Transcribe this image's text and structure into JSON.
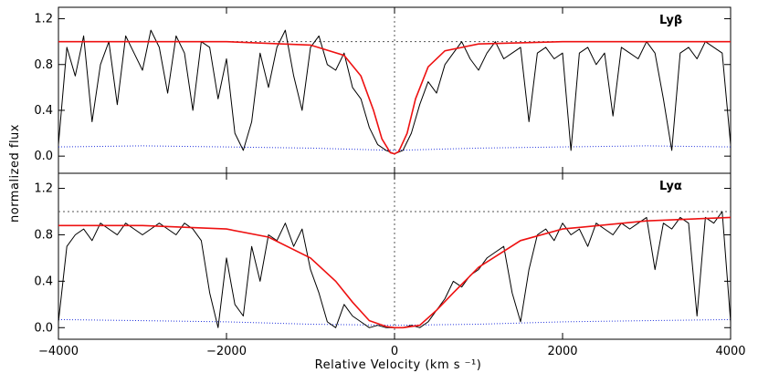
{
  "chart_data": {
    "type": "line",
    "xlabel": "Relative Velocity (km s ⁻¹)",
    "ylabel": "normalized flux",
    "xlim": [
      -4000,
      4000
    ],
    "x_ticks": [
      -4000,
      -2000,
      0,
      2000,
      4000
    ],
    "x_tick_labels": [
      "−4000",
      "−2000",
      "0",
      "2000",
      "4000"
    ],
    "grid": false,
    "colors": {
      "flux": "#000000",
      "fit": "#ee1111",
      "error": "#2233dd",
      "reference": "#555555"
    },
    "panels": [
      {
        "line_label": "Lyβ",
        "ylim": [
          -0.15,
          1.3
        ],
        "y_ticks": [
          0.0,
          0.4,
          0.8,
          1.2
        ],
        "y_tick_labels": [
          "0.0",
          "0.4",
          "0.8",
          "1.2"
        ],
        "continuum_level": 1.0,
        "fit": {
          "x": [
            -4000,
            -2000,
            -1000,
            -600,
            -400,
            -250,
            -150,
            -50,
            0,
            50,
            150,
            250,
            400,
            600,
            1000,
            2000,
            4000
          ],
          "y": [
            1.0,
            1.0,
            0.97,
            0.88,
            0.7,
            0.4,
            0.15,
            0.03,
            0.02,
            0.04,
            0.2,
            0.5,
            0.78,
            0.92,
            0.98,
            1.0,
            1.0
          ]
        },
        "flux": {
          "x": [
            -4000,
            -3900,
            -3800,
            -3700,
            -3600,
            -3500,
            -3400,
            -3300,
            -3200,
            -3100,
            -3000,
            -2900,
            -2800,
            -2700,
            -2600,
            -2500,
            -2400,
            -2300,
            -2200,
            -2100,
            -2000,
            -1900,
            -1800,
            -1700,
            -1600,
            -1500,
            -1400,
            -1300,
            -1200,
            -1100,
            -1000,
            -900,
            -800,
            -700,
            -600,
            -500,
            -400,
            -300,
            -200,
            -100,
            0,
            100,
            200,
            300,
            400,
            500,
            600,
            700,
            800,
            900,
            1000,
            1100,
            1200,
            1300,
            1400,
            1500,
            1600,
            1700,
            1800,
            1900,
            2000,
            2100,
            2200,
            2300,
            2400,
            2500,
            2600,
            2700,
            2800,
            2900,
            3000,
            3100,
            3200,
            3300,
            3400,
            3500,
            3600,
            3700,
            3800,
            3900,
            4000
          ],
          "y": [
            0.1,
            0.95,
            0.7,
            1.05,
            0.3,
            0.8,
            1.0,
            0.45,
            1.05,
            0.9,
            0.75,
            1.1,
            0.95,
            0.55,
            1.05,
            0.9,
            0.4,
            1.0,
            0.95,
            0.5,
            0.85,
            0.2,
            0.05,
            0.3,
            0.9,
            0.6,
            0.95,
            1.1,
            0.7,
            0.4,
            0.95,
            1.05,
            0.8,
            0.75,
            0.9,
            0.6,
            0.5,
            0.25,
            0.1,
            0.05,
            0.02,
            0.05,
            0.2,
            0.45,
            0.65,
            0.55,
            0.8,
            0.9,
            1.0,
            0.85,
            0.75,
            0.9,
            1.0,
            0.85,
            0.9,
            0.95,
            0.3,
            0.9,
            0.95,
            0.85,
            0.9,
            0.05,
            0.9,
            0.95,
            0.8,
            0.9,
            0.35,
            0.95,
            0.9,
            0.85,
            1.0,
            0.9,
            0.5,
            0.05,
            0.9,
            0.95,
            0.85,
            1.0,
            0.95,
            0.9,
            0.1
          ]
        },
        "error": {
          "x": [
            -4000,
            -3000,
            -2000,
            -1000,
            0,
            1000,
            2000,
            3000,
            4000
          ],
          "y": [
            0.08,
            0.09,
            0.08,
            0.07,
            0.05,
            0.07,
            0.08,
            0.09,
            0.08
          ]
        }
      },
      {
        "line_label": "Lyα",
        "ylim": [
          -0.1,
          1.33
        ],
        "y_ticks": [
          0.0,
          0.4,
          0.8,
          1.2
        ],
        "y_tick_labels": [
          "0.0",
          "0.4",
          "0.8",
          "1.2"
        ],
        "continuum_level": 1.0,
        "fit": {
          "x": [
            -4000,
            -3000,
            -2000,
            -1500,
            -1000,
            -700,
            -500,
            -300,
            -100,
            0,
            100,
            300,
            500,
            700,
            1000,
            1500,
            2000,
            3000,
            4000
          ],
          "y": [
            0.88,
            0.88,
            0.85,
            0.78,
            0.6,
            0.4,
            0.22,
            0.06,
            0.01,
            0.0,
            0.0,
            0.02,
            0.15,
            0.3,
            0.52,
            0.75,
            0.85,
            0.92,
            0.95
          ]
        },
        "flux": {
          "x": [
            -4000,
            -3900,
            -3800,
            -3700,
            -3600,
            -3500,
            -3400,
            -3300,
            -3200,
            -3100,
            -3000,
            -2900,
            -2800,
            -2700,
            -2600,
            -2500,
            -2400,
            -2300,
            -2200,
            -2100,
            -2000,
            -1900,
            -1800,
            -1700,
            -1600,
            -1500,
            -1400,
            -1300,
            -1200,
            -1100,
            -1000,
            -900,
            -800,
            -700,
            -600,
            -500,
            -400,
            -300,
            -200,
            -100,
            0,
            100,
            200,
            300,
            400,
            500,
            600,
            700,
            800,
            900,
            1000,
            1100,
            1200,
            1300,
            1400,
            1500,
            1600,
            1700,
            1800,
            1900,
            2000,
            2100,
            2200,
            2300,
            2400,
            2500,
            2600,
            2700,
            2800,
            2900,
            3000,
            3100,
            3200,
            3300,
            3400,
            3500,
            3600,
            3700,
            3800,
            3900,
            4000
          ],
          "y": [
            0.05,
            0.7,
            0.8,
            0.85,
            0.75,
            0.9,
            0.85,
            0.8,
            0.9,
            0.85,
            0.8,
            0.85,
            0.9,
            0.85,
            0.8,
            0.9,
            0.85,
            0.75,
            0.3,
            0.0,
            0.6,
            0.2,
            0.1,
            0.7,
            0.4,
            0.8,
            0.75,
            0.9,
            0.7,
            0.85,
            0.5,
            0.3,
            0.05,
            0.0,
            0.2,
            0.1,
            0.05,
            0.0,
            0.02,
            0.0,
            0.0,
            0.0,
            0.02,
            0.0,
            0.05,
            0.15,
            0.25,
            0.4,
            0.35,
            0.45,
            0.5,
            0.6,
            0.65,
            0.7,
            0.3,
            0.05,
            0.5,
            0.8,
            0.85,
            0.75,
            0.9,
            0.8,
            0.85,
            0.7,
            0.9,
            0.85,
            0.8,
            0.9,
            0.85,
            0.9,
            0.95,
            0.5,
            0.9,
            0.85,
            0.95,
            0.9,
            0.1,
            0.95,
            0.9,
            1.0,
            0.05
          ]
        },
        "error": {
          "x": [
            -4000,
            -3000,
            -2000,
            -1000,
            0,
            1000,
            2000,
            3000,
            4000
          ],
          "y": [
            0.07,
            0.06,
            0.05,
            0.03,
            0.02,
            0.03,
            0.05,
            0.06,
            0.07
          ]
        }
      }
    ]
  }
}
